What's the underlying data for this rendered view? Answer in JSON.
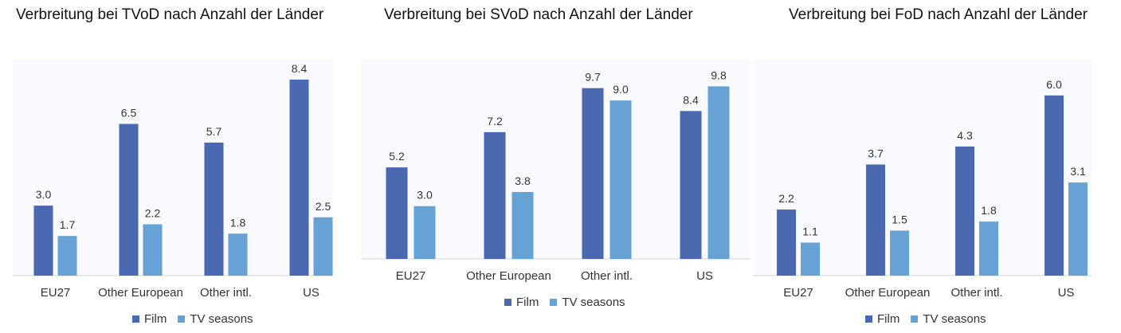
{
  "colors": {
    "film": "#4a69b0",
    "tv": "#67a2d4",
    "axis": "#d4d4d4"
  },
  "chart_data": [
    {
      "type": "bar",
      "title": "Verbreitung bei TVoD nach Anzahl der Länder",
      "categories": [
        "EU27",
        "Other European",
        "Other intl.",
        "US"
      ],
      "series": [
        {
          "name": "Film",
          "values": [
            3.0,
            6.5,
            5.7,
            8.4
          ]
        },
        {
          "name": "TV seasons",
          "values": [
            1.7,
            2.2,
            1.8,
            2.5
          ]
        }
      ],
      "labels": [
        [
          "3.0",
          "6.5",
          "5.7",
          "8.4"
        ],
        [
          "1.7",
          "2.2",
          "1.8",
          "2.5"
        ]
      ],
      "ylim": [
        0,
        10
      ],
      "legend": "bottom",
      "grid": false
    },
    {
      "type": "bar",
      "title": "Verbreitung bei SVoD nach Anzahl der Länder",
      "categories": [
        "EU27",
        "Other European",
        "Other intl.",
        "US"
      ],
      "series": [
        {
          "name": "Film",
          "values": [
            5.2,
            7.2,
            9.7,
            8.4
          ]
        },
        {
          "name": "TV seasons",
          "values": [
            3.0,
            3.8,
            9.0,
            9.8
          ]
        }
      ],
      "labels": [
        [
          "5.2",
          "7.2",
          "9.7",
          "8.4"
        ],
        [
          "3.0",
          "3.8",
          "9.0",
          "9.8"
        ]
      ],
      "ylim": [
        0,
        10
      ],
      "legend": "bottom",
      "grid": false
    },
    {
      "type": "bar",
      "title": "Verbreitung bei FoD nach Anzahl der Länder",
      "categories": [
        "EU27",
        "Other European",
        "Other intl.",
        "US"
      ],
      "series": [
        {
          "name": "Film",
          "values": [
            2.2,
            3.7,
            4.3,
            6.0
          ]
        },
        {
          "name": "TV seasons",
          "values": [
            1.1,
            1.5,
            1.8,
            3.1
          ]
        }
      ],
      "labels": [
        [
          "2.2",
          "3.7",
          "4.3",
          "6.0"
        ],
        [
          "1.1",
          "1.5",
          "1.8",
          "3.1"
        ]
      ],
      "ylim": [
        0,
        10
      ],
      "legend": "bottom",
      "grid": false
    }
  ]
}
